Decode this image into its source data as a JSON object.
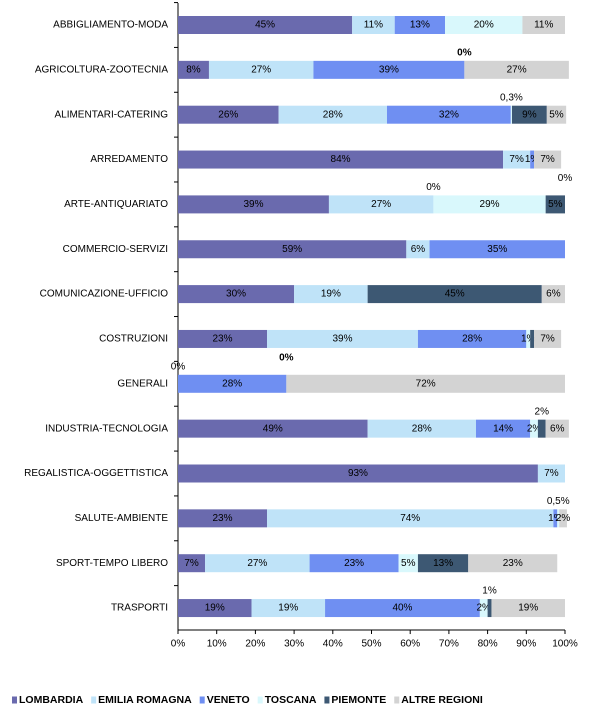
{
  "chart_data": {
    "type": "bar",
    "orientation": "horizontal",
    "stacked": true,
    "categories": [
      "ABBIGLIAMENTO-MODA",
      "AGRICOLTURA-ZOOTECNIA",
      "ALIMENTARI-CATERING",
      "ARREDAMENTO",
      "ARTE-ANTIQUARIATO",
      "COMMERCIO-SERVIZI",
      "COMUNICAZIONE-UFFICIO",
      "COSTRUZIONI",
      "GENERALI",
      "INDUSTRIA-TECNOLOGIA",
      "REGALISTICA-OGGETTISTICA",
      "SALUTE-AMBIENTE",
      "SPORT-TEMPO LIBERO",
      "TRASPORTI"
    ],
    "series": [
      {
        "name": "LOMBARDIA",
        "color": "#6a6aae",
        "values": [
          45,
          8,
          26,
          84,
          39,
          59,
          30,
          23,
          0,
          49,
          93,
          23,
          7,
          19
        ],
        "value_labels": [
          "45%",
          "8%",
          "26%",
          "84%",
          "39%",
          "59%",
          "30%",
          "23%",
          "0%",
          "49%",
          "93%",
          "23%",
          "7%",
          "19%"
        ]
      },
      {
        "name": "EMILIA ROMAGNA",
        "color": "#bfe3f8",
        "values": [
          11,
          27,
          28,
          7,
          27,
          6,
          19,
          39,
          null,
          28,
          7,
          74,
          27,
          19
        ],
        "value_labels": [
          "11%",
          "27%",
          "28%",
          "7%",
          "27%",
          "6%",
          "19%",
          "39%",
          null,
          "28%",
          "7%",
          "74%",
          "27%",
          "19%"
        ]
      },
      {
        "name": "VENETO",
        "color": "#6f8ff2",
        "values": [
          13,
          39,
          32,
          1,
          0,
          35,
          null,
          28,
          28,
          14,
          null,
          1,
          23,
          40
        ],
        "value_labels": [
          "13%",
          "39%",
          "32%",
          "1%",
          "0%",
          "35%",
          null,
          "28%",
          "28%",
          "14%",
          null,
          "1%",
          "23%",
          "40%"
        ]
      },
      {
        "name": "TOSCANA",
        "color": "#d9f8fc",
        "values": [
          20,
          0,
          0.3,
          null,
          29,
          null,
          null,
          1,
          0,
          2,
          null,
          0.5,
          5,
          2
        ],
        "value_labels": [
          "20%",
          "0%",
          "0,3%",
          null,
          "29%",
          null,
          null,
          "1%",
          "0%",
          "2%",
          null,
          "0,5%",
          "5%",
          "2%"
        ]
      },
      {
        "name": "PIEMONTE",
        "color": "#3d5873",
        "values": [
          null,
          null,
          9,
          null,
          5,
          null,
          45,
          1,
          null,
          2,
          null,
          null,
          13,
          1
        ],
        "value_labels": [
          null,
          null,
          "9%",
          null,
          "5%",
          null,
          "45%",
          null,
          null,
          "2%",
          null,
          null,
          "13%",
          "1%"
        ]
      },
      {
        "name": "ALTRE REGIONI",
        "color": "#d3d3d3",
        "values": [
          11,
          27,
          5,
          7,
          0,
          null,
          6,
          7,
          72,
          6,
          null,
          2,
          23,
          19
        ],
        "value_labels": [
          "11%",
          "27%",
          "5%",
          "7%",
          "0%",
          null,
          "6%",
          "7%",
          "72%",
          "6%",
          null,
          "2%",
          "23%",
          "19%"
        ]
      }
    ],
    "xlim": [
      0,
      100
    ],
    "xticks": [
      {
        "value": 0,
        "label": "0%"
      },
      {
        "value": 10,
        "label": "10%"
      },
      {
        "value": 20,
        "label": "20%"
      },
      {
        "value": 30,
        "label": "30%"
      },
      {
        "value": 40,
        "label": "40%"
      },
      {
        "value": 50,
        "label": "50%"
      },
      {
        "value": 60,
        "label": "60%"
      },
      {
        "value": 70,
        "label": "70%"
      },
      {
        "value": 80,
        "label": "80%"
      },
      {
        "value": 90,
        "label": "90%"
      },
      {
        "value": 100,
        "label": "100%"
      }
    ],
    "legend": "bottom"
  }
}
